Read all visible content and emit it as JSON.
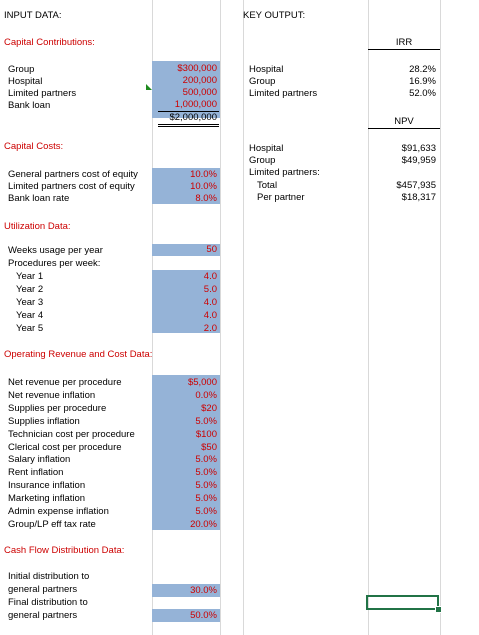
{
  "input_header": "INPUT DATA:",
  "output_header": "KEY OUTPUT:",
  "capital_contributions": {
    "title": "Capital Contributions:",
    "rows": [
      {
        "label": "Group",
        "value": "$300,000"
      },
      {
        "label": "Hospital",
        "value": "200,000"
      },
      {
        "label": "Limited partners",
        "value": "500,000"
      },
      {
        "label": "Bank loan",
        "value": "1,000,000"
      }
    ],
    "total": "$2,000,000"
  },
  "capital_costs": {
    "title": "Capital Costs:",
    "rows": [
      {
        "label": "General partners cost of equity",
        "value": "10.0%"
      },
      {
        "label": "Limited partners cost of equity",
        "value": "10.0%"
      },
      {
        "label": "Bank loan rate",
        "value": "8.0%"
      }
    ]
  },
  "utilization": {
    "title": "Utilization Data:",
    "weeks_label": "Weeks usage per year",
    "weeks_value": "50",
    "procedures_label": "Procedures per week:",
    "years": [
      {
        "label": "Year 1",
        "value": "4.0"
      },
      {
        "label": "Year 2",
        "value": "5.0"
      },
      {
        "label": "Year 3",
        "value": "4.0"
      },
      {
        "label": "Year 4",
        "value": "4.0"
      },
      {
        "label": "Year 5",
        "value": "2.0"
      }
    ]
  },
  "operating": {
    "title": "Operating Revenue and Cost Data:",
    "rows": [
      {
        "label": "Net revenue per procedure",
        "value": "$5,000"
      },
      {
        "label": "Net revenue inflation",
        "value": "0.0%"
      },
      {
        "label": "Supplies per procedure",
        "value": "$20"
      },
      {
        "label": "Supplies inflation",
        "value": "5.0%"
      },
      {
        "label": "Technician cost per procedure",
        "value": "$100"
      },
      {
        "label": "Clerical cost per procedure",
        "value": "$50"
      },
      {
        "label": "Salary inflation",
        "value": "5.0%"
      },
      {
        "label": "Rent inflation",
        "value": "5.0%"
      },
      {
        "label": "Insurance inflation",
        "value": "5.0%"
      },
      {
        "label": "Marketing inflation",
        "value": "5.0%"
      },
      {
        "label": "Admin expense inflation",
        "value": "5.0%"
      },
      {
        "label": "Group/LP eff tax rate",
        "value": "20.0%"
      }
    ]
  },
  "cash_flow": {
    "title": "Cash Flow Distribution Data:",
    "initial_label_1": "Initial distribution to",
    "initial_label_2": "general partners",
    "initial_value": "30.0%",
    "final_label_1": "Final distribution to",
    "final_label_2": "general partners",
    "final_value": "50.0%"
  },
  "irr": {
    "title": "IRR",
    "rows": [
      {
        "label": "Hospital",
        "value": "28.2%"
      },
      {
        "label": "Group",
        "value": "16.9%"
      },
      {
        "label": "Limited partners",
        "value": "52.0%"
      }
    ]
  },
  "npv": {
    "title": "NPV",
    "hospital_label": "Hospital",
    "hospital_value": "$91,633",
    "group_label": "Group",
    "group_value": "$49,959",
    "lp_label": "Limited partners:",
    "total_label": "Total",
    "total_value": "$457,935",
    "per_partner_label": "Per partner",
    "per_partner_value": "$18,317"
  },
  "colors": {
    "input_fill": "#95b3d7",
    "input_text": "#cc0000",
    "section_title": "#cc0000",
    "selection": "#217346"
  }
}
